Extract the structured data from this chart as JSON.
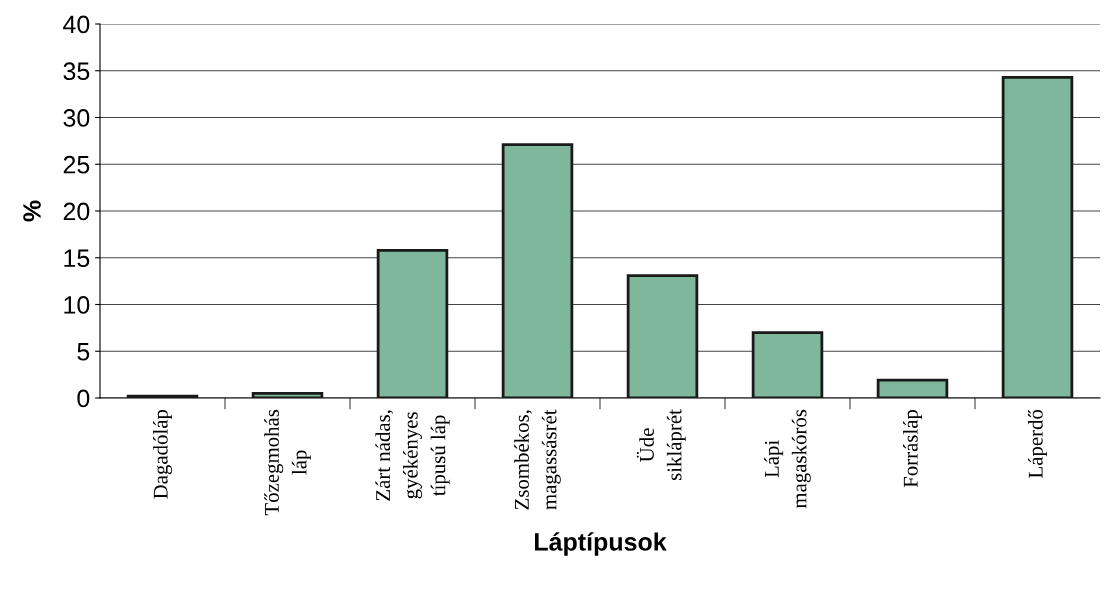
{
  "chart_data": {
    "type": "bar",
    "xlabel": "Láptípusok",
    "ylabel": "%",
    "categories": [
      "Dagadóláp",
      "Tőzegmohás\nláp",
      "Zárt nádas,\ngyékényes\ntípusú láp",
      "Zsombékos,\nmagassásrét",
      "Üde\nsikláprét",
      "Lápi\nmagaskórós",
      "Forrásláp",
      "Láperdő"
    ],
    "values": [
      0.2,
      0.5,
      15.8,
      27.1,
      13.1,
      7.0,
      1.9,
      34.3
    ],
    "color": "#7fb79d",
    "ylim": [
      0,
      40
    ],
    "yticks": [
      0,
      5,
      10,
      15,
      20,
      25,
      30,
      35,
      40
    ],
    "grid": "y"
  }
}
